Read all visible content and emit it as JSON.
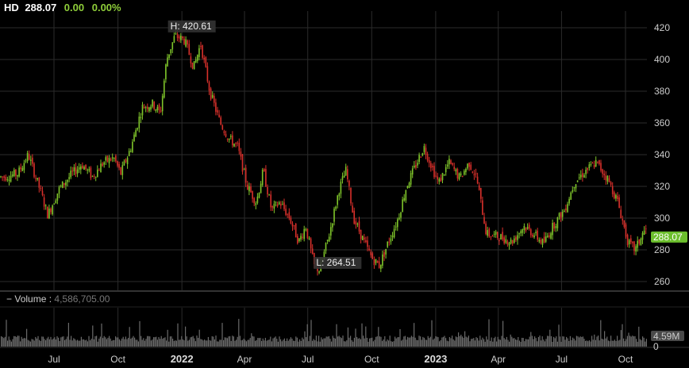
{
  "header": {
    "symbol": "HD",
    "price": "288.07",
    "change": "0.00",
    "change_pct": "0.00%"
  },
  "volume_legend": {
    "label": "Volume",
    "value": "4,586,705.00"
  },
  "colors": {
    "up": "#7fc52a",
    "down": "#d8302b",
    "grid": "#2b2b2b",
    "volume": "#6a6a6a",
    "badge": "#6cbf2d"
  },
  "chart_data": {
    "type": "candlestick",
    "price_axis": {
      "ticks": [
        260,
        280,
        300,
        320,
        340,
        360,
        380,
        400,
        420
      ]
    },
    "volume_axis": {
      "ticks": [
        "4.59M",
        "0"
      ]
    },
    "x_axis": {
      "labels": [
        {
          "date": "2021-07",
          "label": "Jul"
        },
        {
          "date": "2021-10",
          "label": "Oct"
        },
        {
          "date": "2022-01",
          "label": "2022",
          "bold": true
        },
        {
          "date": "2022-04",
          "label": "Apr"
        },
        {
          "date": "2022-07",
          "label": "Jul"
        },
        {
          "date": "2022-10",
          "label": "Oct"
        },
        {
          "date": "2023-01",
          "label": "2023",
          "bold": true
        },
        {
          "date": "2023-04",
          "label": "Apr"
        },
        {
          "date": "2023-07",
          "label": "Jul"
        },
        {
          "date": "2023-10",
          "label": "Oct"
        }
      ]
    },
    "price_path": [
      [
        "2021-04-20",
        326
      ],
      [
        "2021-05-10",
        328
      ],
      [
        "2021-05-25",
        340
      ],
      [
        "2021-06-10",
        319
      ],
      [
        "2021-06-22",
        302
      ],
      [
        "2021-07-08",
        318
      ],
      [
        "2021-07-25",
        327
      ],
      [
        "2021-08-10",
        334
      ],
      [
        "2021-08-25",
        326
      ],
      [
        "2021-09-10",
        335
      ],
      [
        "2021-09-25",
        338
      ],
      [
        "2021-10-05",
        328
      ],
      [
        "2021-10-20",
        345
      ],
      [
        "2021-11-05",
        370
      ],
      [
        "2021-11-20",
        372
      ],
      [
        "2021-12-01",
        366
      ],
      [
        "2021-12-10",
        400
      ],
      [
        "2021-12-22",
        415
      ],
      [
        "2022-01-05",
        412
      ],
      [
        "2022-01-18",
        395
      ],
      [
        "2022-01-28",
        410
      ],
      [
        "2022-02-10",
        380
      ],
      [
        "2022-02-25",
        360
      ],
      [
        "2022-03-10",
        350
      ],
      [
        "2022-03-22",
        345
      ],
      [
        "2022-04-05",
        320
      ],
      [
        "2022-04-18",
        310
      ],
      [
        "2022-04-28",
        330
      ],
      [
        "2022-05-10",
        305
      ],
      [
        "2022-05-22",
        310
      ],
      [
        "2022-06-05",
        300
      ],
      [
        "2022-06-18",
        285
      ],
      [
        "2022-06-28",
        295
      ],
      [
        "2022-07-10",
        270
      ],
      [
        "2022-07-18",
        267
      ],
      [
        "2022-08-01",
        290
      ],
      [
        "2022-08-15",
        318
      ],
      [
        "2022-08-25",
        330
      ],
      [
        "2022-09-05",
        300
      ],
      [
        "2022-09-20",
        285
      ],
      [
        "2022-10-01",
        275
      ],
      [
        "2022-10-12",
        270
      ],
      [
        "2022-10-25",
        285
      ],
      [
        "2022-11-08",
        300
      ],
      [
        "2022-11-20",
        320
      ],
      [
        "2022-12-05",
        335
      ],
      [
        "2022-12-15",
        345
      ],
      [
        "2023-01-05",
        322
      ],
      [
        "2023-01-20",
        335
      ],
      [
        "2023-02-05",
        325
      ],
      [
        "2023-02-18",
        335
      ],
      [
        "2023-03-01",
        325
      ],
      [
        "2023-03-15",
        290
      ],
      [
        "2023-04-05",
        288
      ],
      [
        "2023-04-20",
        285
      ],
      [
        "2023-05-08",
        295
      ],
      [
        "2023-05-22",
        290
      ],
      [
        "2023-06-05",
        284
      ],
      [
        "2023-06-20",
        296
      ],
      [
        "2023-07-05",
        305
      ],
      [
        "2023-07-20",
        323
      ],
      [
        "2023-08-05",
        330
      ],
      [
        "2023-08-20",
        335
      ],
      [
        "2023-09-05",
        325
      ],
      [
        "2023-09-20",
        310
      ],
      [
        "2023-10-05",
        284
      ],
      [
        "2023-10-15",
        280
      ],
      [
        "2023-10-28",
        292
      ]
    ],
    "annotations": [
      {
        "date": "2021-12-28",
        "value": 420.61,
        "label": "H: 420.61"
      },
      {
        "date": "2022-07-12",
        "value": 264.51,
        "label": "L: 264.51"
      }
    ],
    "last_price": {
      "value": 288.07,
      "label": "288.07"
    }
  }
}
